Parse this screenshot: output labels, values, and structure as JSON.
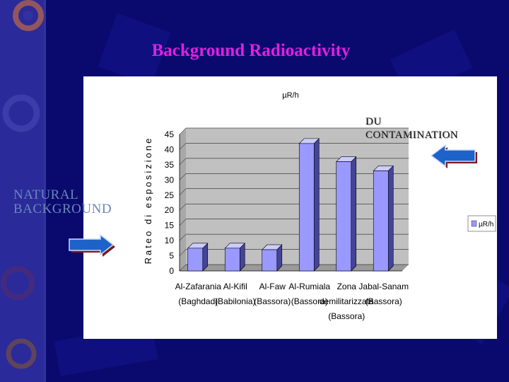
{
  "slide": {
    "title": "Background Radioactivity",
    "natural_label_line1": "NATURAL",
    "natural_label_line2": "BACKGROUND",
    "du_label_line1": "DU",
    "du_label_line2": "CONTAMINATION",
    "colors": {
      "background": "#0a0a6e",
      "title": "#e020e0",
      "bar": "#9999ff",
      "plot_area": "#c0c0c0"
    },
    "decoration_icons": [
      "gear-icon",
      "right-arrow-icon",
      "left-arrow-icon"
    ]
  },
  "chart_data": {
    "type": "bar",
    "title": "µR/h",
    "ylabel": "Rateo di esposizione",
    "xlabel": "",
    "categories": [
      [
        "Al-Zafarania",
        "(Baghdad)"
      ],
      [
        "Al-Kifil",
        "(Babilonia)"
      ],
      [
        "Al-Faw",
        "(Bassora)"
      ],
      [
        "Al-Rumiala",
        "(Bassora)"
      ],
      [
        "Zona",
        "demilitarizzata",
        "(Bassora)"
      ],
      [
        "Jabal-Sanam",
        "(Bassora)"
      ]
    ],
    "series": [
      {
        "name": "µR/h",
        "values": [
          7.5,
          7.5,
          7,
          42,
          36,
          33
        ]
      }
    ],
    "ylim": [
      0,
      45
    ],
    "yticks": [
      0,
      5,
      10,
      15,
      20,
      25,
      30,
      35,
      40,
      45
    ],
    "grid": true,
    "legend": "right",
    "style": "3d"
  }
}
